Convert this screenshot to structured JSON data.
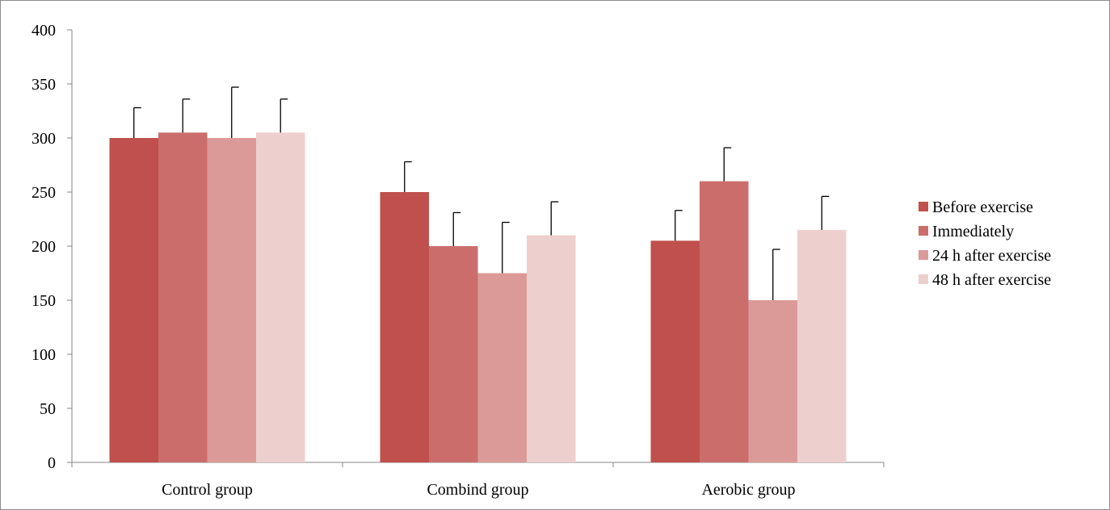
{
  "chart_data": {
    "type": "bar",
    "title": "",
    "xlabel": "",
    "ylabel": "",
    "ylim": [
      0,
      400
    ],
    "yticks": [
      0,
      50,
      100,
      150,
      200,
      250,
      300,
      350,
      400
    ],
    "grid": false,
    "legend_position": "right",
    "categories": [
      "Control group",
      "Combind group",
      "Aerobic group"
    ],
    "series": [
      {
        "name": "Before exercise",
        "color": "#c0504d",
        "values": [
          300,
          250,
          205
        ],
        "error": [
          28,
          28,
          28
        ]
      },
      {
        "name": "Immediately",
        "color": "#cb6e6b",
        "values": [
          305,
          200,
          260
        ],
        "error": [
          31,
          31,
          31
        ]
      },
      {
        "name": "24 h after exercise",
        "color": "#db9a98",
        "values": [
          300,
          175,
          150
        ],
        "error": [
          47,
          47,
          47
        ]
      },
      {
        "name": "48 h after exercise",
        "color": "#edcfce",
        "values": [
          305,
          210,
          215
        ],
        "error": [
          31,
          31,
          31
        ]
      }
    ]
  }
}
